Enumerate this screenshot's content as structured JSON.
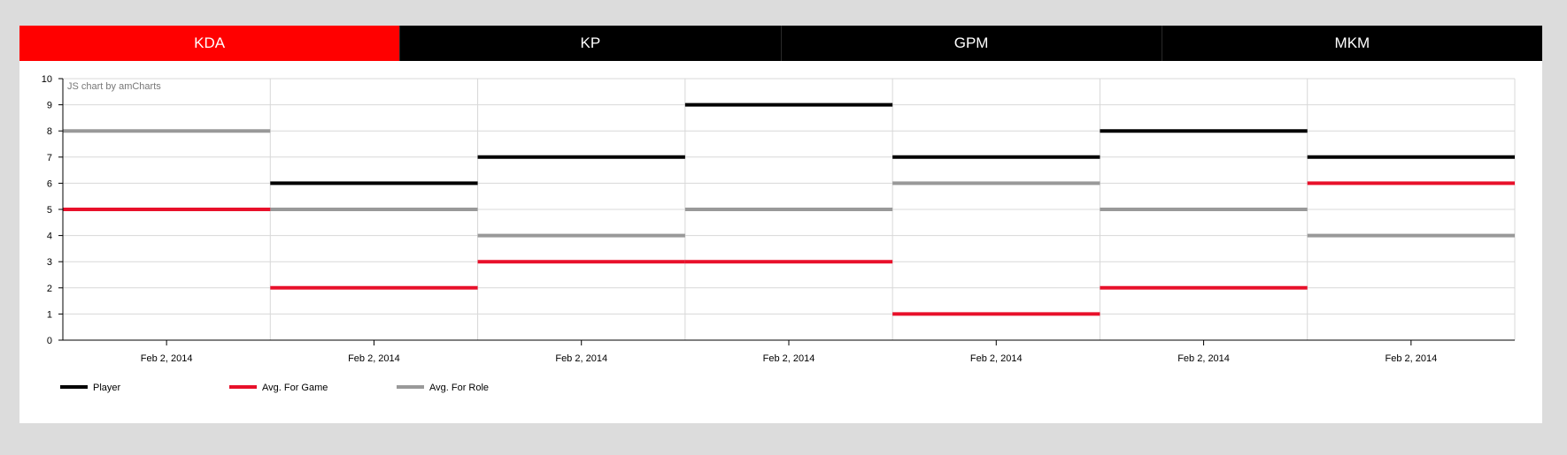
{
  "tabs": [
    {
      "label": "KDA",
      "active": true
    },
    {
      "label": "KP",
      "active": false
    },
    {
      "label": "GPM",
      "active": false
    },
    {
      "label": "MKM",
      "active": false
    }
  ],
  "colors": {
    "active_tab": "#ff0000",
    "tab_bar": "#000000",
    "player": "#000000",
    "avg_game": "#e8102a",
    "avg_role": "#999999",
    "background": "#dcdcdc"
  },
  "watermark": "JS chart by amCharts",
  "chart_data": {
    "type": "line",
    "step": true,
    "categories": [
      "Feb 2, 2014",
      "Feb 2, 2014",
      "Feb 2, 2014",
      "Feb 2, 2014",
      "Feb 2, 2014",
      "Feb 2, 2014",
      "Feb 2, 2014"
    ],
    "series": [
      {
        "name": "Player",
        "color": "#000000",
        "values": [
          null,
          6,
          7,
          9,
          7,
          8,
          7
        ]
      },
      {
        "name": "Avg. For Game",
        "color": "#e8102a",
        "values": [
          5,
          2,
          3,
          3,
          1,
          2,
          6
        ]
      },
      {
        "name": "Avg. For Role",
        "color": "#999999",
        "values": [
          8,
          5,
          4,
          5,
          6,
          5,
          4
        ]
      }
    ],
    "yticks": [
      "0",
      "1",
      "2",
      "3",
      "4",
      "5",
      "6",
      "7",
      "8",
      "9",
      "10"
    ],
    "ylim": [
      0,
      10
    ],
    "grid": true,
    "legend_position": "bottom-left"
  }
}
